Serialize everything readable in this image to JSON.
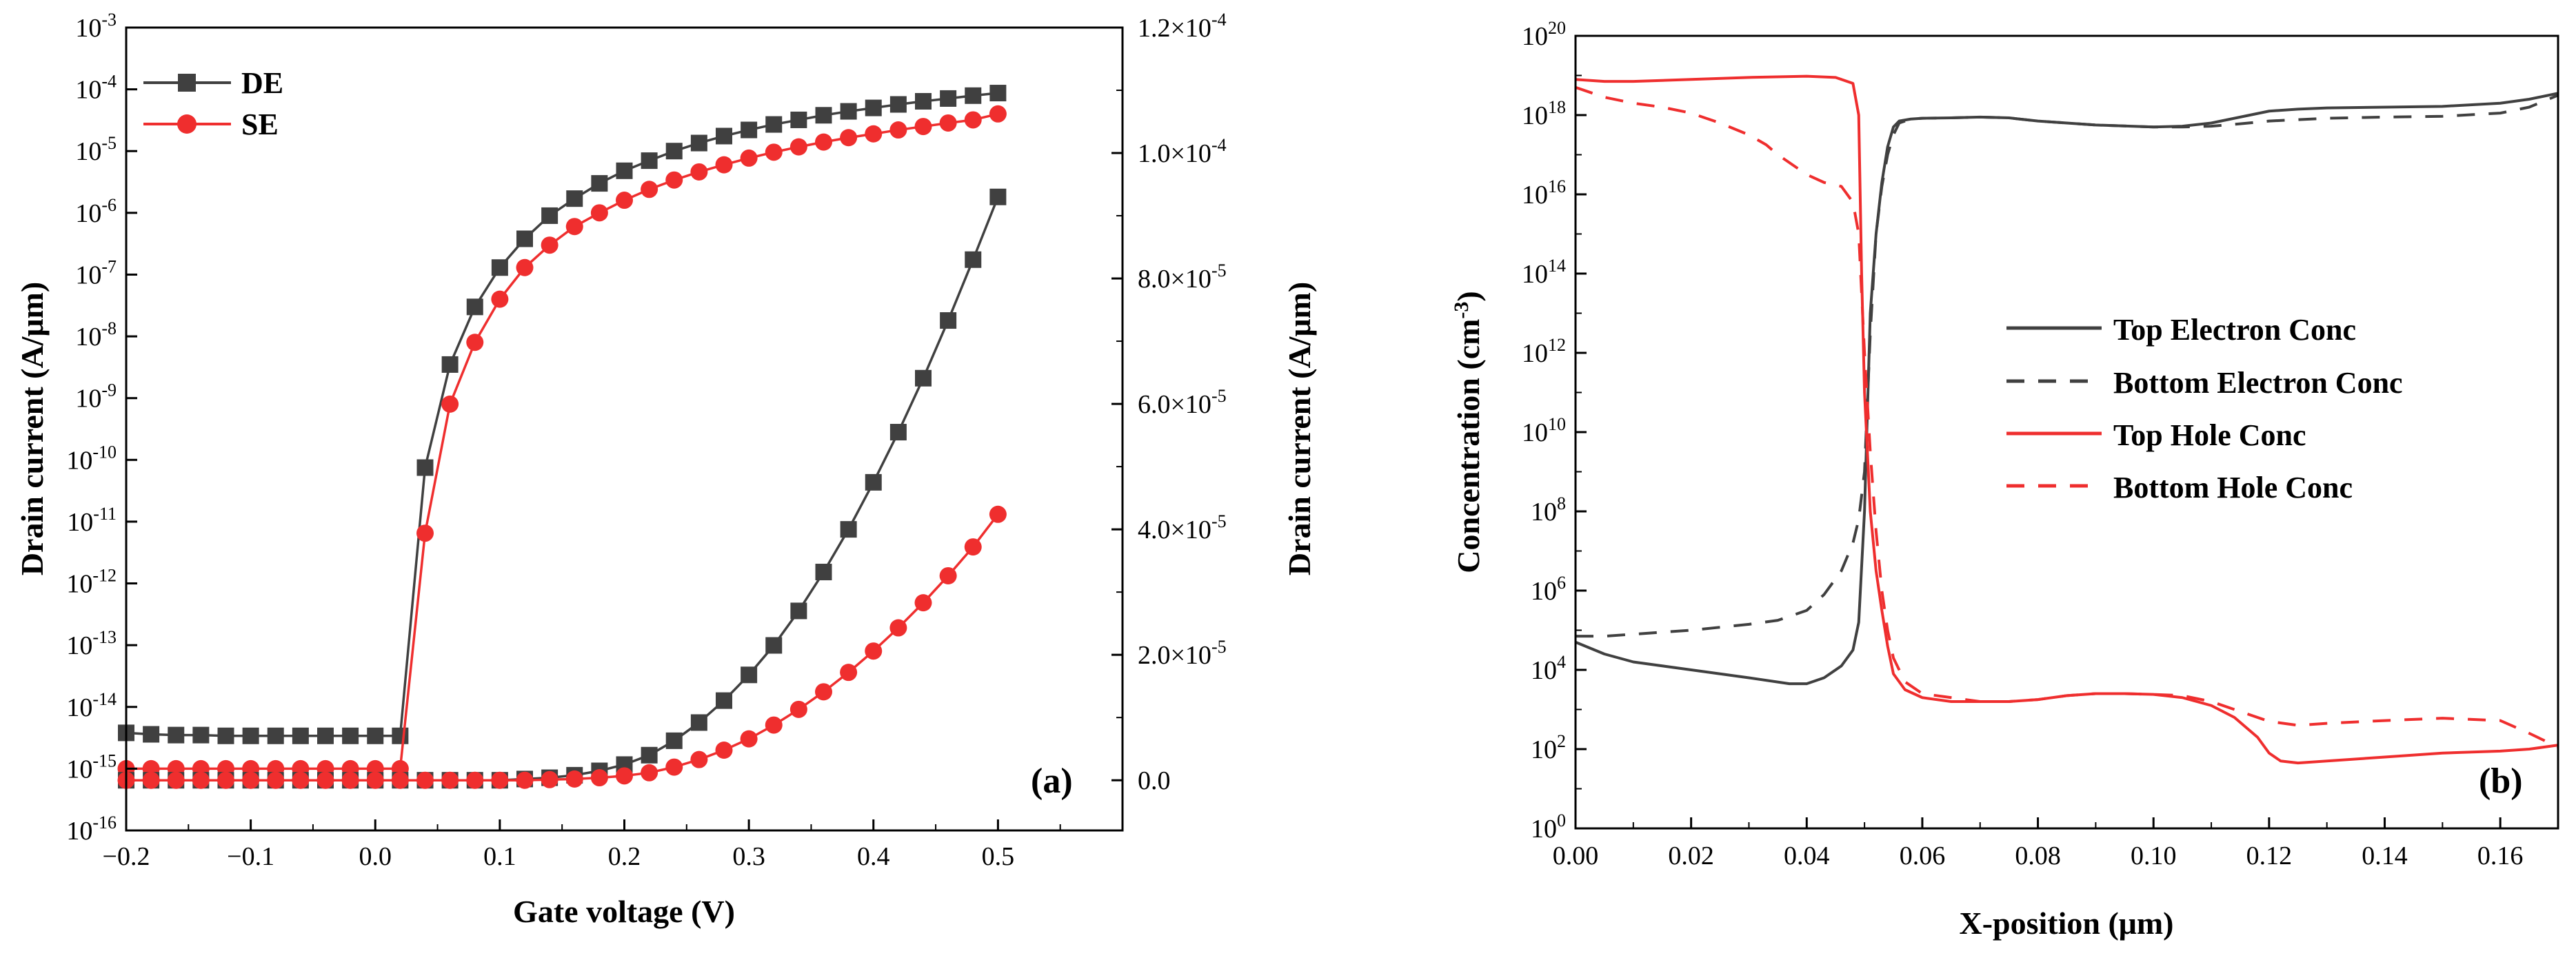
{
  "chart_data": [
    {
      "type": "line",
      "panel_label": "(a)",
      "xlabel": "Gate voltage (V)",
      "ylabel_left": "Drain current (A/μm)",
      "ylabel_right": "Drain current (A/μm)",
      "x_ticks": [
        "−0.2",
        "−0.1",
        "0.0",
        "0.1",
        "0.2",
        "0.3",
        "0.4",
        "0.5"
      ],
      "x_tick_values": [
        -0.2,
        -0.1,
        0.0,
        0.1,
        0.2,
        0.3,
        0.4,
        0.5
      ],
      "xlim": [
        -0.2,
        0.6
      ],
      "ylim_left_log10": [
        -16,
        -3
      ],
      "left_ticks": [
        {
          "exp": -3,
          "base": "10",
          "sup": "-3"
        },
        {
          "exp": -4,
          "base": "10",
          "sup": "-4"
        },
        {
          "exp": -5,
          "base": "10",
          "sup": "-5"
        },
        {
          "exp": -6,
          "base": "10",
          "sup": "-6"
        },
        {
          "exp": -7,
          "base": "10",
          "sup": "-7"
        },
        {
          "exp": -8,
          "base": "10",
          "sup": "-8"
        },
        {
          "exp": -9,
          "base": "10",
          "sup": "-9"
        },
        {
          "exp": -10,
          "base": "10",
          "sup": "-10"
        },
        {
          "exp": -11,
          "base": "10",
          "sup": "-11"
        },
        {
          "exp": -12,
          "base": "10",
          "sup": "-12"
        },
        {
          "exp": -13,
          "base": "10",
          "sup": "-13"
        },
        {
          "exp": -14,
          "base": "10",
          "sup": "-14"
        },
        {
          "exp": -15,
          "base": "10",
          "sup": "-15"
        },
        {
          "exp": -16,
          "base": "10",
          "sup": "-16"
        }
      ],
      "ylim_right": [
        -8e-06,
        0.00012
      ],
      "right_ticks": [
        {
          "value": 0.00012,
          "mant": "1.2",
          "sup": "-4"
        },
        {
          "value": 0.0001,
          "mant": "1.0",
          "sup": "-4"
        },
        {
          "value": 8e-05,
          "mant": "8.0",
          "sup": "-5"
        },
        {
          "value": 6e-05,
          "mant": "6.0",
          "sup": "-5"
        },
        {
          "value": 4e-05,
          "mant": "4.0",
          "sup": "-5"
        },
        {
          "value": 2e-05,
          "mant": "2.0",
          "sup": "-5"
        },
        {
          "value": 0.0,
          "label": "0.0"
        }
      ],
      "times_sign": "×",
      "ten": "10",
      "legend": [
        {
          "name": "DE",
          "color": "#404040",
          "marker": "square"
        },
        {
          "name": "SE",
          "color": "#ef2e2e",
          "marker": "circle"
        }
      ],
      "x": [
        -0.2,
        -0.18,
        -0.16,
        -0.14,
        -0.12,
        -0.1,
        -0.08,
        -0.06,
        -0.04,
        -0.02,
        0.0,
        0.02,
        0.04,
        0.06,
        0.08,
        0.1,
        0.12,
        0.14,
        0.16,
        0.18,
        0.2,
        0.22,
        0.24,
        0.26,
        0.28,
        0.3,
        0.32,
        0.34,
        0.36,
        0.38,
        0.4,
        0.42,
        0.44,
        0.46,
        0.48,
        0.5
      ],
      "series": [
        {
          "name": "DE (log axis)",
          "axis": "left-log",
          "color": "#404040",
          "marker": "square",
          "values": [
            3.8e-15,
            3.6e-15,
            3.5e-15,
            3.5e-15,
            3.4e-15,
            3.4e-15,
            3.4e-15,
            3.4e-15,
            3.4e-15,
            3.4e-15,
            3.4e-15,
            3.4e-15,
            7.5e-11,
            3.5e-09,
            3e-08,
            1.3e-07,
            3.8e-07,
            9e-07,
            1.7e-06,
            3e-06,
            4.8e-06,
            7e-06,
            1e-05,
            1.35e-05,
            1.75e-05,
            2.2e-05,
            2.7e-05,
            3.2e-05,
            3.8e-05,
            4.4e-05,
            5e-05,
            5.7e-05,
            6.4e-05,
            7.1e-05,
            7.9e-05,
            8.7e-05
          ]
        },
        {
          "name": "SE (log axis)",
          "axis": "left-log",
          "color": "#ef2e2e",
          "marker": "circle",
          "values": [
            1e-15,
            1e-15,
            1e-15,
            1e-15,
            1e-15,
            1e-15,
            1e-15,
            1e-15,
            1e-15,
            1e-15,
            1e-15,
            1e-15,
            6.5e-12,
            8e-10,
            8e-09,
            4e-08,
            1.3e-07,
            3e-07,
            6e-07,
            1e-06,
            1.6e-06,
            2.4e-06,
            3.4e-06,
            4.6e-06,
            6e-06,
            7.7e-06,
            9.6e-06,
            1.17e-05,
            1.4e-05,
            1.65e-05,
            1.9e-05,
            2.2e-05,
            2.5e-05,
            2.85e-05,
            3.2e-05,
            4e-05
          ]
        },
        {
          "name": "DE (linear axis)",
          "axis": "right-linear",
          "color": "#404040",
          "marker": "square",
          "values": [
            0,
            0,
            0,
            0,
            0,
            0,
            0,
            0,
            0,
            0,
            0,
            0,
            0,
            0,
            0,
            0,
            2e-07,
            4e-07,
            8e-07,
            1.5e-06,
            2.5e-06,
            4e-06,
            6.3e-06,
            9.2e-06,
            1.27e-05,
            1.68e-05,
            2.15e-05,
            2.7e-05,
            3.32e-05,
            4e-05,
            4.75e-05,
            5.55e-05,
            6.41e-05,
            7.33e-05,
            8.3e-05,
            9.3e-05
          ]
        },
        {
          "name": "SE (linear axis)",
          "axis": "right-linear",
          "color": "#ef2e2e",
          "marker": "circle",
          "values": [
            0,
            0,
            0,
            0,
            0,
            0,
            0,
            0,
            0,
            0,
            0,
            0,
            0,
            0,
            0,
            0,
            0,
            1e-07,
            2e-07,
            4e-07,
            7e-07,
            1.2e-06,
            2.1e-06,
            3.3e-06,
            4.8e-06,
            6.6e-06,
            8.8e-06,
            1.13e-05,
            1.41e-05,
            1.72e-05,
            2.06e-05,
            2.43e-05,
            2.83e-05,
            3.26e-05,
            3.72e-05,
            4.24e-05
          ]
        }
      ]
    },
    {
      "type": "line",
      "panel_label": "(b)",
      "xlabel": "X-position (μm)",
      "ylabel": "Concentration (cm",
      "ylabel_sup": "-3",
      "ylabel_end": ")",
      "xlim": [
        0.0,
        0.17
      ],
      "x_ticks": [
        "0.00",
        "0.02",
        "0.04",
        "0.06",
        "0.08",
        "0.10",
        "0.12",
        "0.14",
        "0.16"
      ],
      "x_tick_values": [
        0.0,
        0.02,
        0.04,
        0.06,
        0.08,
        0.1,
        0.12,
        0.14,
        0.16
      ],
      "ylim_log10": [
        0,
        20
      ],
      "y_ticks": [
        {
          "exp": 20,
          "base": "10",
          "sup": "20"
        },
        {
          "exp": 18,
          "base": "10",
          "sup": "18"
        },
        {
          "exp": 16,
          "base": "10",
          "sup": "16"
        },
        {
          "exp": 14,
          "base": "10",
          "sup": "14"
        },
        {
          "exp": 12,
          "base": "10",
          "sup": "12"
        },
        {
          "exp": 10,
          "base": "10",
          "sup": "10"
        },
        {
          "exp": 8,
          "base": "10",
          "sup": "8"
        },
        {
          "exp": 6,
          "base": "10",
          "sup": "6"
        },
        {
          "exp": 4,
          "base": "10",
          "sup": "4"
        },
        {
          "exp": 2,
          "base": "10",
          "sup": "2"
        },
        {
          "exp": 0,
          "base": "10",
          "sup": "0"
        }
      ],
      "legend": [
        {
          "name": "Top Electron Conc",
          "color": "#404040",
          "dash": false
        },
        {
          "name": "Bottom Electron Conc",
          "color": "#404040",
          "dash": true
        },
        {
          "name": "Top Hole Conc",
          "color": "#ef2e2e",
          "dash": false
        },
        {
          "name": "Bottom Hole Conc",
          "color": "#ef2e2e",
          "dash": true
        }
      ],
      "series": [
        {
          "name": "Top Electron Conc",
          "color": "#404040",
          "dash": false,
          "x": [
            0.0,
            0.005,
            0.01,
            0.02,
            0.03,
            0.037,
            0.04,
            0.043,
            0.046,
            0.048,
            0.049,
            0.05,
            0.051,
            0.052,
            0.053,
            0.054,
            0.055,
            0.056,
            0.058,
            0.06,
            0.065,
            0.07,
            0.075,
            0.08,
            0.09,
            0.1,
            0.105,
            0.11,
            0.115,
            0.12,
            0.125,
            0.13,
            0.14,
            0.15,
            0.16,
            0.165,
            0.17
          ],
          "log_values": [
            4.7,
            4.4,
            4.2,
            4.0,
            3.8,
            3.65,
            3.65,
            3.8,
            4.1,
            4.5,
            5.2,
            8.0,
            13.0,
            15.0,
            16.3,
            17.2,
            17.7,
            17.85,
            17.9,
            17.92,
            17.93,
            17.95,
            17.93,
            17.85,
            17.75,
            17.7,
            17.72,
            17.8,
            17.95,
            18.1,
            18.15,
            18.18,
            18.2,
            18.22,
            18.3,
            18.4,
            18.55
          ]
        },
        {
          "name": "Bottom Electron Conc",
          "color": "#404040",
          "dash": true,
          "x": [
            0.0,
            0.005,
            0.01,
            0.02,
            0.03,
            0.035,
            0.04,
            0.043,
            0.046,
            0.048,
            0.049,
            0.05,
            0.051,
            0.052,
            0.053,
            0.054,
            0.055,
            0.056,
            0.058,
            0.06,
            0.065,
            0.07,
            0.075,
            0.08,
            0.09,
            0.1,
            0.105,
            0.11,
            0.115,
            0.12,
            0.13,
            0.14,
            0.15,
            0.16,
            0.165,
            0.17
          ],
          "log_values": [
            4.85,
            4.85,
            4.9,
            5.0,
            5.15,
            5.25,
            5.5,
            5.9,
            6.5,
            7.2,
            7.8,
            9.0,
            12.5,
            15.0,
            16.2,
            17.0,
            17.5,
            17.8,
            17.9,
            17.92,
            17.93,
            17.95,
            17.93,
            17.85,
            17.75,
            17.7,
            17.7,
            17.72,
            17.78,
            17.85,
            17.92,
            17.95,
            17.97,
            18.05,
            18.2,
            18.5
          ]
        },
        {
          "name": "Top Hole Conc",
          "color": "#ef2e2e",
          "dash": false,
          "x": [
            0.0,
            0.005,
            0.01,
            0.02,
            0.03,
            0.04,
            0.045,
            0.048,
            0.049,
            0.0495,
            0.05,
            0.0505,
            0.051,
            0.052,
            0.053,
            0.054,
            0.055,
            0.057,
            0.06,
            0.065,
            0.07,
            0.075,
            0.08,
            0.085,
            0.09,
            0.095,
            0.1,
            0.105,
            0.11,
            0.114,
            0.118,
            0.12,
            0.122,
            0.125,
            0.13,
            0.14,
            0.15,
            0.16,
            0.165,
            0.17
          ],
          "log_values": [
            18.9,
            18.85,
            18.85,
            18.9,
            18.95,
            18.98,
            18.95,
            18.8,
            18.0,
            14.0,
            11.0,
            9.5,
            8.0,
            6.5,
            5.5,
            4.6,
            3.9,
            3.5,
            3.3,
            3.2,
            3.2,
            3.2,
            3.25,
            3.35,
            3.4,
            3.4,
            3.38,
            3.3,
            3.1,
            2.8,
            2.3,
            1.9,
            1.7,
            1.65,
            1.7,
            1.8,
            1.9,
            1.95,
            2.0,
            2.1
          ]
        },
        {
          "name": "Bottom Hole Conc",
          "color": "#ef2e2e",
          "dash": true,
          "x": [
            0.0,
            0.005,
            0.01,
            0.015,
            0.02,
            0.025,
            0.03,
            0.033,
            0.035,
            0.038,
            0.04,
            0.043,
            0.046,
            0.048,
            0.049,
            0.05,
            0.051,
            0.052,
            0.053,
            0.054,
            0.055,
            0.057,
            0.06,
            0.065,
            0.07,
            0.075,
            0.08,
            0.085,
            0.09,
            0.095,
            0.1,
            0.105,
            0.11,
            0.115,
            0.12,
            0.125,
            0.13,
            0.14,
            0.15,
            0.16,
            0.165,
            0.17
          ],
          "log_values": [
            18.7,
            18.45,
            18.3,
            18.2,
            18.05,
            17.8,
            17.5,
            17.25,
            17.0,
            16.7,
            16.5,
            16.3,
            16.2,
            15.8,
            15.0,
            12.0,
            9.5,
            7.5,
            6.0,
            5.0,
            4.3,
            3.7,
            3.4,
            3.3,
            3.2,
            3.2,
            3.25,
            3.35,
            3.4,
            3.4,
            3.38,
            3.35,
            3.2,
            2.95,
            2.7,
            2.6,
            2.65,
            2.72,
            2.78,
            2.72,
            2.4,
            2.05
          ]
        }
      ]
    }
  ]
}
